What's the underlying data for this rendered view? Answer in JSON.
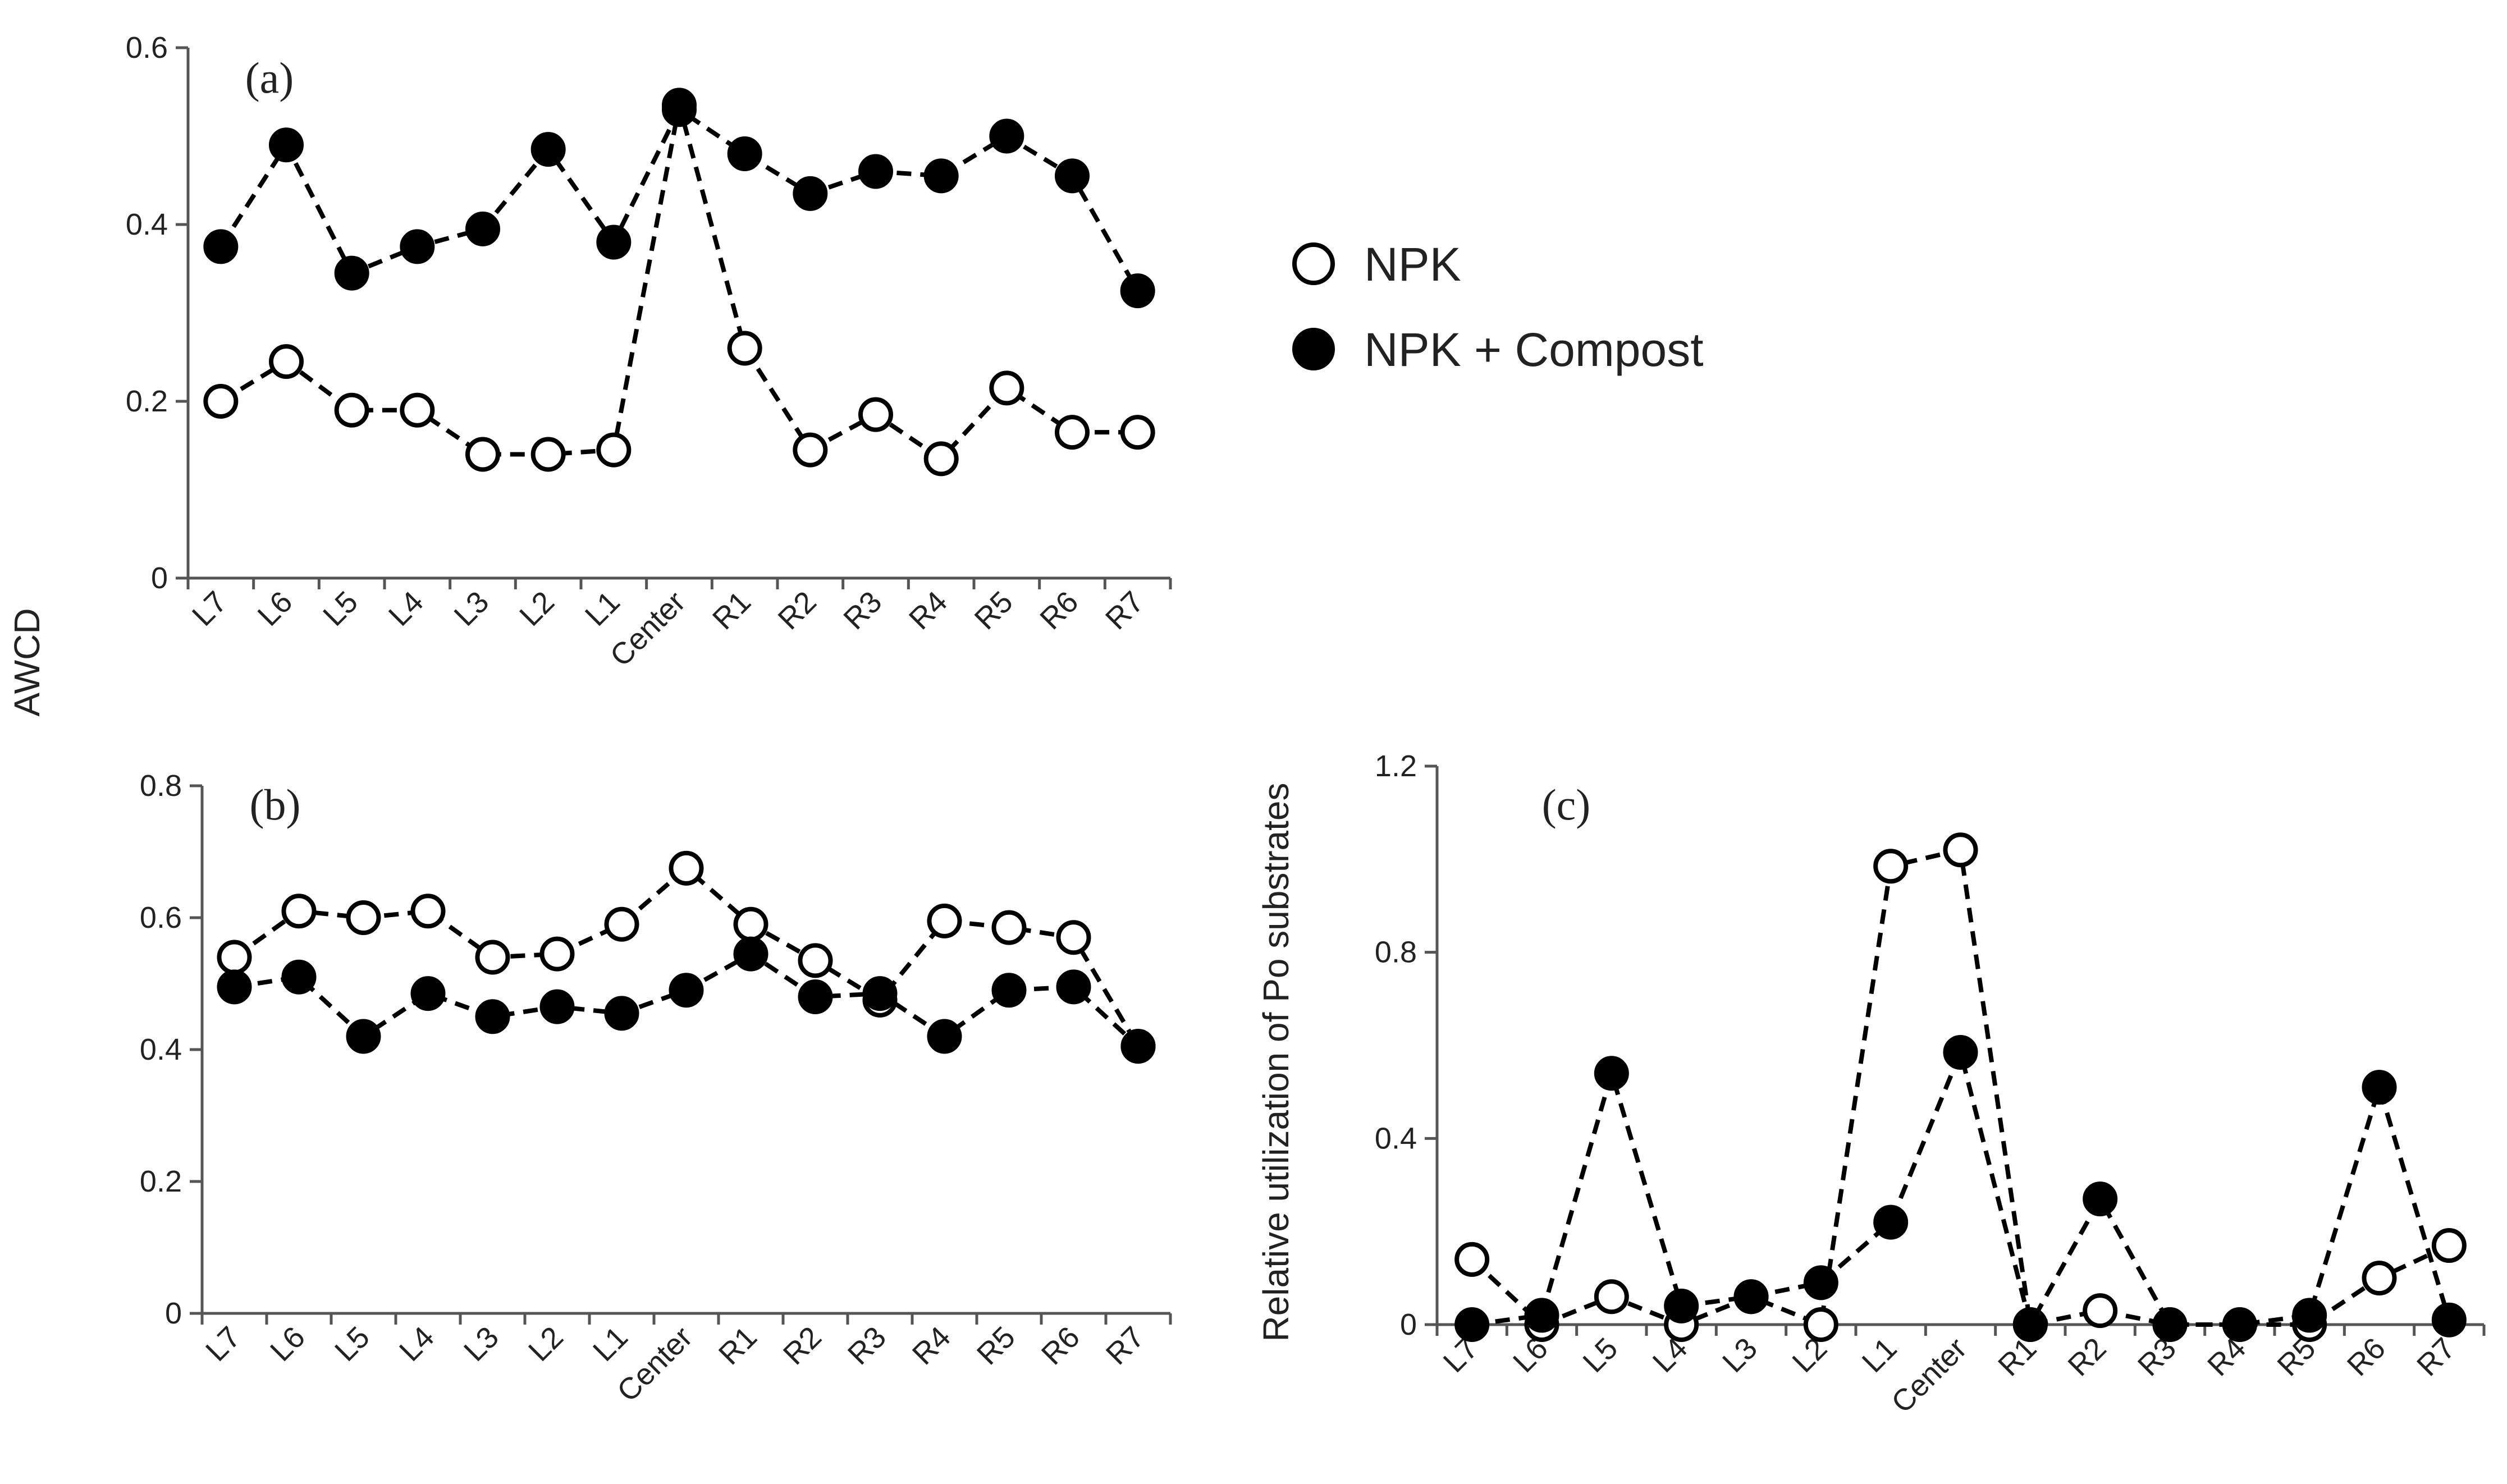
{
  "legend": {
    "npk": "NPK",
    "compost": "NPK + Compost"
  },
  "shared_ylabel": "AWCD",
  "chart_data": [
    {
      "id": "a",
      "type": "line",
      "panel_label": "(a)",
      "title": "",
      "xlabel": "",
      "ylabel": "AWCD",
      "ylim": [
        0,
        0.6
      ],
      "yticks": [
        0,
        0.2,
        0.4,
        0.6
      ],
      "ytick_labels": [
        "0",
        "0.2",
        "0.4",
        "0.6"
      ],
      "categories": [
        "L7",
        "L6",
        "L5",
        "L4",
        "L3",
        "L2",
        "L1",
        "Center",
        "R1",
        "R2",
        "R3",
        "R4",
        "R5",
        "R6",
        "R7"
      ],
      "grid": false,
      "series": [
        {
          "name": "NPK",
          "marker": "open-circle",
          "values": [
            0.2,
            0.245,
            0.19,
            0.19,
            0.14,
            0.14,
            0.145,
            0.535,
            0.26,
            0.145,
            0.185,
            0.135,
            0.215,
            0.165,
            0.165
          ]
        },
        {
          "name": "NPK + Compost",
          "marker": "filled-circle",
          "values": [
            0.375,
            0.49,
            0.345,
            0.375,
            0.395,
            0.485,
            0.38,
            0.53,
            0.48,
            0.435,
            0.46,
            0.455,
            0.5,
            0.455,
            0.325
          ]
        }
      ]
    },
    {
      "id": "b",
      "type": "line",
      "panel_label": "(b)",
      "title": "",
      "xlabel": "",
      "ylabel": "AWCD",
      "ylim": [
        0,
        0.8
      ],
      "yticks": [
        0,
        0.2,
        0.4,
        0.6,
        0.8
      ],
      "ytick_labels": [
        "0",
        "0.2",
        "0.4",
        "0.6",
        "0.8"
      ],
      "categories": [
        "L7",
        "L6",
        "L5",
        "L4",
        "L3",
        "L2",
        "L1",
        "Center",
        "R1",
        "R2",
        "R3",
        "R4",
        "R5",
        "R6",
        "R7"
      ],
      "grid": false,
      "series": [
        {
          "name": "NPK",
          "marker": "open-circle",
          "values": [
            0.54,
            0.61,
            0.6,
            0.61,
            0.54,
            0.545,
            0.59,
            0.675,
            0.59,
            0.535,
            0.475,
            0.595,
            0.585,
            0.57,
            0.405
          ]
        },
        {
          "name": "NPK + Compost",
          "marker": "filled-circle",
          "values": [
            0.495,
            0.51,
            0.42,
            0.485,
            0.45,
            0.465,
            0.455,
            0.49,
            0.545,
            0.48,
            0.485,
            0.42,
            0.49,
            0.495,
            0.405
          ]
        }
      ]
    },
    {
      "id": "c",
      "type": "line",
      "panel_label": "(c)",
      "title": "",
      "xlabel": "",
      "ylabel": "Relative utilization of Po substrates",
      "ylim": [
        0,
        1.2
      ],
      "yticks": [
        0,
        0.4,
        0.8,
        1.2
      ],
      "ytick_labels": [
        "0",
        "0.4",
        "0.8",
        "1.2"
      ],
      "categories": [
        "L7",
        "L6",
        "L5",
        "L4",
        "L3",
        "L2",
        "L1",
        "Center",
        "R1",
        "R2",
        "R3",
        "R4",
        "R5",
        "R6",
        "R7"
      ],
      "grid": false,
      "series": [
        {
          "name": "NPK",
          "marker": "open-circle",
          "values": [
            0.14,
            0.0,
            0.06,
            0.0,
            0.06,
            0.0,
            0.985,
            1.02,
            0.0,
            0.03,
            0.0,
            0.0,
            0.0,
            0.1,
            0.17
          ]
        },
        {
          "name": "NPK + Compost",
          "marker": "filled-circle",
          "values": [
            0.0,
            0.02,
            0.54,
            0.04,
            0.06,
            0.09,
            0.22,
            0.585,
            0.0,
            0.27,
            0.0,
            0.0,
            0.02,
            0.51,
            0.01
          ]
        }
      ]
    }
  ]
}
